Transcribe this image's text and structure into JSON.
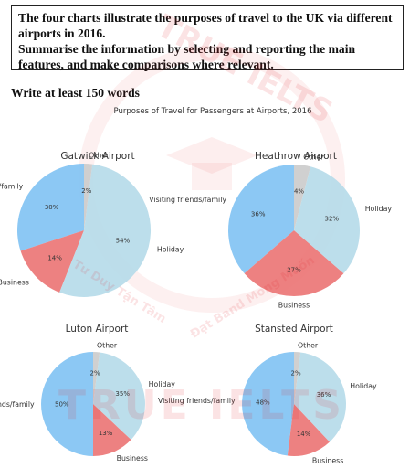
{
  "task": {
    "line1": "The four charts illustrate the purposes of travel to the UK via different airports in 2016.",
    "line2": "Summarise the information by selecting and reporting the main features, and make comparisons where relevant.",
    "word_count_note": "Write at least 150 words"
  },
  "watermark": {
    "top_text": "TRUE IELTS",
    "bottom_text": "TRUE IELTS",
    "slogan_left": "Tư Duy Tận Tâm",
    "slogan_right": "Đạt Band Mong Muốn"
  },
  "colors": {
    "visiting": "#7cc0f2",
    "business": "#ea6f6f",
    "holiday": "#b3d9e8",
    "other": "#c9c9c9",
    "watermark": "#e3242b"
  },
  "chart_data": {
    "type": "pie",
    "title": "Purposes of Travel for Passengers at Airports, 2016",
    "charts": [
      {
        "name": "Gatwick Airport",
        "categories": [
          "Visiting friends/family",
          "Business",
          "Holiday",
          "Other"
        ],
        "values": [
          30,
          14,
          54,
          2
        ],
        "labels": [
          "30%",
          "14%",
          "54%",
          "2%"
        ]
      },
      {
        "name": "Heathrow Airport",
        "categories": [
          "Visiting friends/family",
          "Business",
          "Holiday",
          "Other"
        ],
        "values": [
          36,
          27,
          32,
          4
        ],
        "labels": [
          "36%",
          "27%",
          "32%",
          "4%"
        ]
      },
      {
        "name": "Luton Airport",
        "categories": [
          "Visiting friends/family",
          "Business",
          "Holiday",
          "Other"
        ],
        "values": [
          50,
          13,
          35,
          2
        ],
        "labels": [
          "50%",
          "13%",
          "35%",
          "2%"
        ]
      },
      {
        "name": "Stansted Airport",
        "categories": [
          "Visiting friends/family",
          "Business",
          "Holiday",
          "Other"
        ],
        "values": [
          48,
          14,
          36,
          2
        ],
        "labels": [
          "48%",
          "14%",
          "36%",
          "2%"
        ]
      }
    ]
  }
}
